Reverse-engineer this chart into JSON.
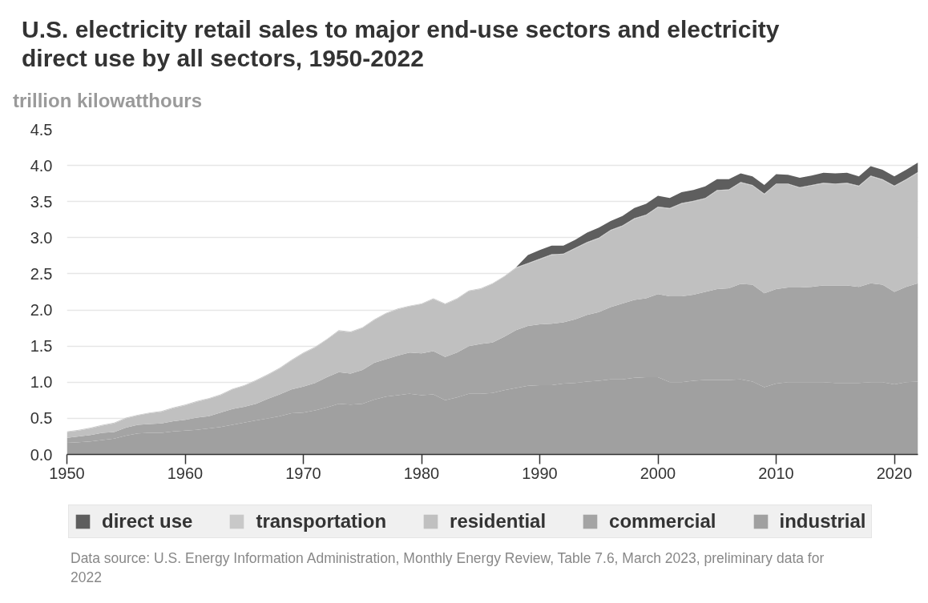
{
  "chart_data": {
    "type": "area",
    "stacked": true,
    "title": "U.S. electricity retail sales to major end-use sectors and electricity direct use by all sectors, 1950-2022",
    "ylabel": "trillion kilowatthours",
    "annotations": [
      "Data source: U.S. Energy Information Administration, Monthly Energy Review, Table 7.6, March 2023, preliminary data for 2022"
    ],
    "x": [
      1950,
      1951,
      1952,
      1953,
      1954,
      1955,
      1956,
      1957,
      1958,
      1959,
      1960,
      1961,
      1962,
      1963,
      1964,
      1965,
      1966,
      1967,
      1968,
      1969,
      1970,
      1971,
      1972,
      1973,
      1974,
      1975,
      1976,
      1977,
      1978,
      1979,
      1980,
      1981,
      1982,
      1983,
      1984,
      1985,
      1986,
      1987,
      1988,
      1989,
      1990,
      1991,
      1992,
      1993,
      1994,
      1995,
      1996,
      1997,
      1998,
      1999,
      2000,
      2001,
      2002,
      2003,
      2004,
      2005,
      2006,
      2007,
      2008,
      2009,
      2010,
      2011,
      2012,
      2013,
      2014,
      2015,
      2016,
      2017,
      2018,
      2019,
      2020,
      2021,
      2022
    ],
    "xlim": [
      1950,
      2022
    ],
    "xticks": [
      1950,
      1960,
      1970,
      1980,
      1990,
      2000,
      2010,
      2020
    ],
    "ylim": [
      0,
      4.5
    ],
    "yticks": [
      {
        "value": 0,
        "label": "0.0"
      },
      {
        "value": 0.5,
        "label": "0.5"
      },
      {
        "value": 1,
        "label": "1.0"
      },
      {
        "value": 1.5,
        "label": "1.5"
      },
      {
        "value": 2,
        "label": "2.0"
      },
      {
        "value": 2.5,
        "label": "2.5"
      },
      {
        "value": 3,
        "label": "3.0"
      },
      {
        "value": 3.5,
        "label": "3.5"
      },
      {
        "value": 4,
        "label": "4.0"
      },
      {
        "value": 4.5,
        "label": "4.5"
      }
    ],
    "grid": "y",
    "legend": "bottom",
    "series": [
      {
        "name": "industrial",
        "color": "#a0a0a0",
        "values": [
          0.16,
          0.17,
          0.18,
          0.2,
          0.22,
          0.26,
          0.29,
          0.3,
          0.3,
          0.32,
          0.33,
          0.34,
          0.36,
          0.38,
          0.41,
          0.44,
          0.47,
          0.5,
          0.53,
          0.57,
          0.58,
          0.61,
          0.65,
          0.7,
          0.69,
          0.7,
          0.76,
          0.8,
          0.82,
          0.84,
          0.82,
          0.83,
          0.75,
          0.79,
          0.84,
          0.84,
          0.85,
          0.89,
          0.92,
          0.95,
          0.96,
          0.96,
          0.98,
          0.99,
          1.01,
          1.02,
          1.04,
          1.04,
          1.06,
          1.07,
          1.07,
          1.0,
          1.0,
          1.02,
          1.03,
          1.03,
          1.03,
          1.04,
          1.01,
          0.93,
          0.98,
          1.0,
          1.0,
          1.0,
          1.0,
          0.99,
          0.99,
          0.99,
          1.0,
          1.0,
          0.97,
          1.0,
          1.01
        ]
      },
      {
        "name": "commercial",
        "color": "#a4a4a4",
        "values": [
          0.07,
          0.08,
          0.09,
          0.1,
          0.09,
          0.11,
          0.12,
          0.12,
          0.13,
          0.14,
          0.15,
          0.17,
          0.17,
          0.2,
          0.22,
          0.22,
          0.23,
          0.27,
          0.3,
          0.33,
          0.36,
          0.38,
          0.42,
          0.44,
          0.43,
          0.47,
          0.51,
          0.52,
          0.55,
          0.57,
          0.58,
          0.6,
          0.6,
          0.62,
          0.66,
          0.69,
          0.7,
          0.74,
          0.8,
          0.83,
          0.84,
          0.85,
          0.85,
          0.88,
          0.92,
          0.95,
          1.0,
          1.05,
          1.08,
          1.09,
          1.15,
          1.19,
          1.19,
          1.19,
          1.22,
          1.26,
          1.27,
          1.32,
          1.34,
          1.3,
          1.31,
          1.31,
          1.31,
          1.32,
          1.34,
          1.35,
          1.35,
          1.33,
          1.37,
          1.35,
          1.28,
          1.32,
          1.36
        ]
      },
      {
        "name": "residential",
        "color": "#c0c0c0",
        "values": [
          0.08,
          0.08,
          0.09,
          0.1,
          0.12,
          0.13,
          0.13,
          0.15,
          0.16,
          0.18,
          0.2,
          0.22,
          0.24,
          0.24,
          0.27,
          0.29,
          0.32,
          0.33,
          0.36,
          0.4,
          0.46,
          0.49,
          0.52,
          0.57,
          0.57,
          0.58,
          0.59,
          0.63,
          0.64,
          0.64,
          0.68,
          0.72,
          0.73,
          0.74,
          0.76,
          0.76,
          0.81,
          0.83,
          0.86,
          0.86,
          0.9,
          0.95,
          0.94,
          0.98,
          1.0,
          1.02,
          1.06,
          1.07,
          1.12,
          1.15,
          1.2,
          1.21,
          1.28,
          1.29,
          1.29,
          1.36,
          1.36,
          1.4,
          1.37,
          1.37,
          1.45,
          1.43,
          1.38,
          1.4,
          1.41,
          1.4,
          1.41,
          1.39,
          1.48,
          1.45,
          1.46,
          1.48,
          1.53
        ]
      },
      {
        "name": "transportation",
        "color": "#c8c8c8",
        "values": [
          0.01,
          0.01,
          0.01,
          0.01,
          0.01,
          0.01,
          0.01,
          0.01,
          0.01,
          0.01,
          0.01,
          0.01,
          0.01,
          0.01,
          0.01,
          0.01,
          0.01,
          0.01,
          0.01,
          0.01,
          0.01,
          0.01,
          0.01,
          0.01,
          0.01,
          0.01,
          0.01,
          0.01,
          0.01,
          0.01,
          0.01,
          0.01,
          0.01,
          0.01,
          0.01,
          0.01,
          0.01,
          0.01,
          0.01,
          0.01,
          0.01,
          0.01,
          0.01,
          0.01,
          0.01,
          0.01,
          0.01,
          0.01,
          0.01,
          0.01,
          0.01,
          0.01,
          0.01,
          0.01,
          0.01,
          0.01,
          0.01,
          0.01,
          0.01,
          0.01,
          0.01,
          0.01,
          0.01,
          0.01,
          0.01,
          0.01,
          0.01,
          0.01,
          0.01,
          0.01,
          0.01,
          0.01,
          0.01
        ]
      },
      {
        "name": "direct use",
        "color": "#5e5e5e",
        "values": [
          null,
          null,
          null,
          null,
          null,
          null,
          null,
          null,
          null,
          null,
          null,
          null,
          null,
          null,
          null,
          null,
          null,
          null,
          null,
          null,
          null,
          null,
          null,
          null,
          null,
          null,
          null,
          null,
          null,
          null,
          null,
          null,
          null,
          null,
          null,
          null,
          null,
          null,
          0,
          0.11,
          0.12,
          0.12,
          0.11,
          0.11,
          0.13,
          0.14,
          0.12,
          0.13,
          0.14,
          0.15,
          0.15,
          0.14,
          0.15,
          0.15,
          0.16,
          0.15,
          0.14,
          0.12,
          0.12,
          0.12,
          0.13,
          0.12,
          0.13,
          0.13,
          0.14,
          0.14,
          0.14,
          0.13,
          0.13,
          0.13,
          0.13,
          0.13,
          0.13
        ]
      }
    ]
  }
}
